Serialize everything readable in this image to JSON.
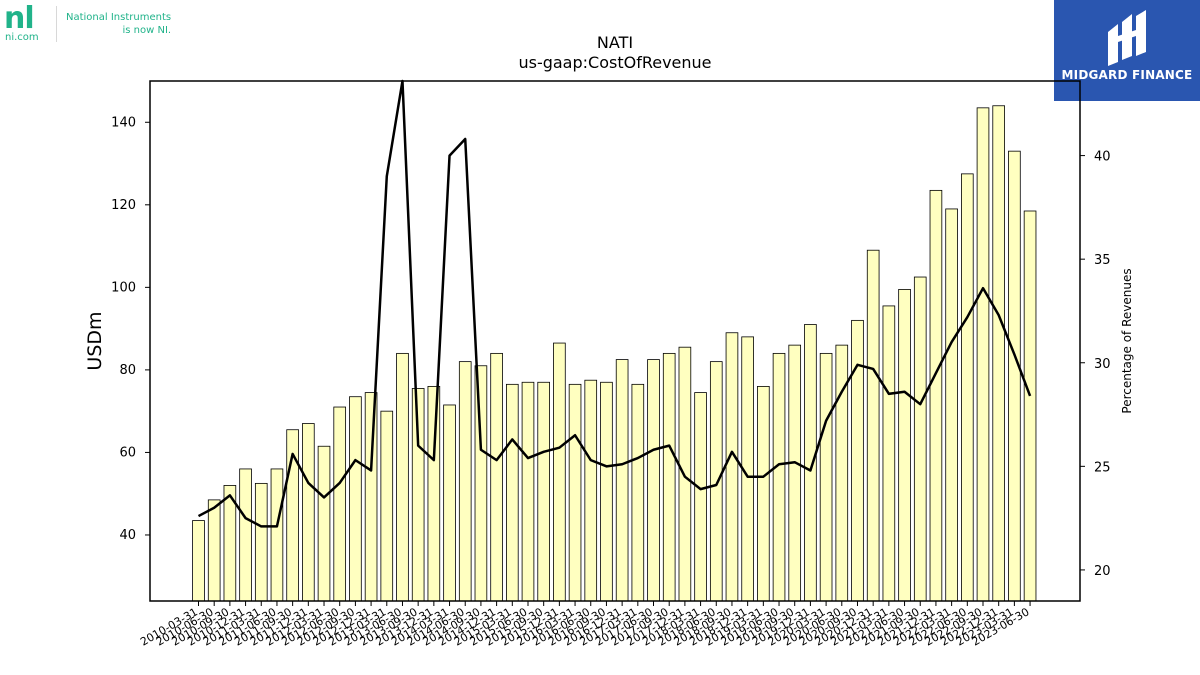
{
  "header": {
    "ni_logo_mark": "nl",
    "ni_site": "ni.com",
    "ni_tagline_line1": "National Instruments",
    "ni_tagline_line2": "is now NI.",
    "brand_name": "MIDGARD FINANCE"
  },
  "colors": {
    "bar_fill": "#ffffc0",
    "bar_stroke": "#000000",
    "line": "#000000",
    "ni_green": "#21b38a",
    "brand_blue": "#2a56b0"
  },
  "chart_data": {
    "type": "bar",
    "title": "NATI",
    "subtitle": "us-gaap:CostOfRevenue",
    "ylabel": "USDm",
    "y2label": "Percentage of Revenues",
    "ylim": [
      24,
      150
    ],
    "y2lim": [
      18.5,
      43.6
    ],
    "yticks": [
      40,
      60,
      80,
      100,
      120,
      140
    ],
    "y2ticks": [
      20,
      25,
      30,
      35,
      40
    ],
    "grid": false,
    "categories": [
      "2010-03-31",
      "2010-06-30",
      "2010-09-30",
      "2010-12-31",
      "2011-03-31",
      "2011-06-30",
      "2011-09-30",
      "2011-12-31",
      "2012-03-31",
      "2012-06-30",
      "2012-09-30",
      "2012-12-31",
      "2013-03-31",
      "2013-06-30",
      "2013-09-30",
      "2013-12-31",
      "2014-03-31",
      "2014-06-30",
      "2014-09-30",
      "2014-12-31",
      "2015-03-31",
      "2015-06-30",
      "2015-09-30",
      "2015-12-31",
      "2016-03-31",
      "2016-06-30",
      "2016-09-30",
      "2016-12-31",
      "2017-03-31",
      "2017-06-30",
      "2017-09-30",
      "2017-12-31",
      "2018-03-31",
      "2018-06-30",
      "2018-09-30",
      "2018-12-31",
      "2019-03-31",
      "2019-06-30",
      "2019-09-30",
      "2019-12-31",
      "2020-03-31",
      "2020-06-30",
      "2020-09-30",
      "2020-12-31",
      "2021-03-31",
      "2021-06-30",
      "2021-09-30",
      "2021-12-31",
      "2022-03-31",
      "2022-06-30",
      "2022-09-30",
      "2022-12-31",
      "2023-03-31",
      "2023-06-30"
    ],
    "series": [
      {
        "kind": "bar",
        "axis": "left",
        "values": [
          43.5,
          48.5,
          52,
          56,
          52.5,
          56,
          65.5,
          67,
          61.5,
          71,
          73.5,
          74.5,
          70,
          84,
          75.5,
          76,
          71.5,
          82,
          81,
          84,
          76.5,
          77,
          77,
          86.5,
          76.5,
          77.5,
          77,
          82.5,
          76.5,
          82.5,
          84,
          85.5,
          74.5,
          82,
          89,
          88,
          76,
          84,
          86,
          91,
          84,
          86,
          92,
          109,
          95.5,
          99.5,
          102.5,
          123.5,
          119,
          127.5,
          143.5,
          144,
          133,
          118.5
        ]
      },
      {
        "kind": "line",
        "axis": "right",
        "values": [
          22.6,
          23.0,
          23.6,
          22.5,
          22.1,
          22.1,
          25.6,
          24.2,
          23.5,
          24.2,
          25.3,
          24.8,
          39.0,
          43.6,
          26.0,
          25.3,
          40.0,
          40.8,
          25.8,
          25.3,
          26.3,
          25.4,
          25.7,
          25.9,
          26.5,
          25.3,
          25.0,
          25.1,
          25.4,
          25.8,
          26.0,
          24.5,
          23.9,
          24.1,
          25.7,
          24.5,
          24.5,
          25.1,
          25.2,
          24.8,
          27.2,
          28.6,
          29.9,
          29.7,
          28.5,
          28.6,
          28.0,
          29.5,
          31.0,
          32.2,
          33.6,
          32.3,
          30.4,
          28.4
        ]
      }
    ]
  }
}
